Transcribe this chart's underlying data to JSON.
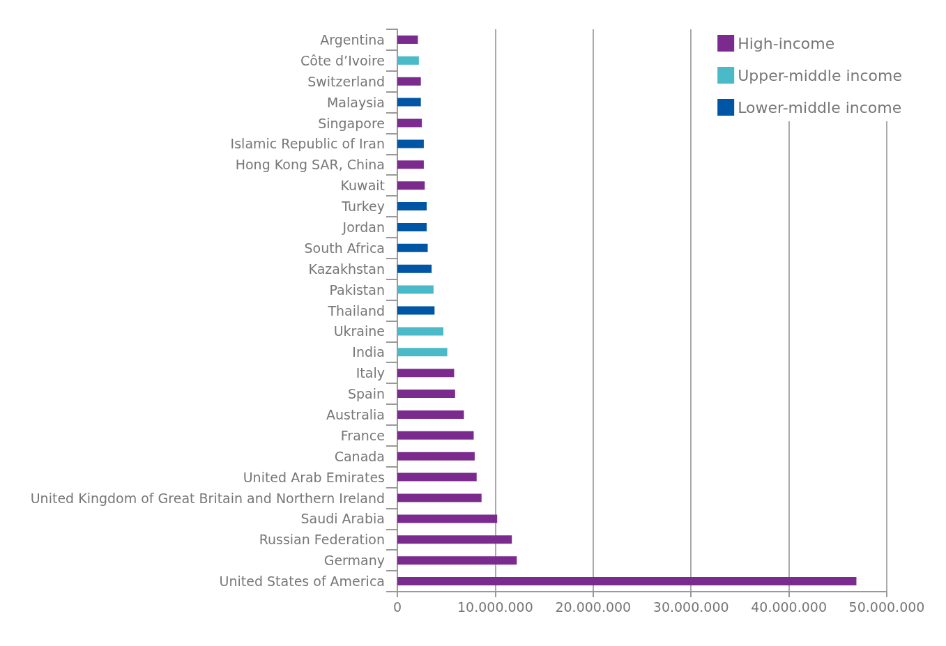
{
  "chart_data": {
    "type": "bar",
    "orientation": "horizontal",
    "categories": [
      "Argentina",
      "Côte d’Ivoire",
      "Switzerland",
      "Malaysia",
      "Singapore",
      "Islamic Republic of Iran",
      "Hong Kong SAR, China",
      "Kuwait",
      "Turkey",
      "Jordan",
      "South Africa",
      "Kazakhstan",
      "Pakistan",
      "Thailand",
      "Ukraine",
      "India",
      "Italy",
      "Spain",
      "Australia",
      "France",
      "Canada",
      "United Arab Emirates",
      "United Kingdom of Great Britain and Northern Ireland",
      "Saudi Arabia",
      "Russian Federation",
      "Germany",
      "United States of America"
    ],
    "series": [
      {
        "name": "High-income",
        "color": "#7b2a8e",
        "values": [
          2100000,
          null,
          2400000,
          null,
          2500000,
          null,
          2700000,
          2800000,
          null,
          null,
          null,
          null,
          null,
          null,
          null,
          null,
          5800000,
          5900000,
          6800000,
          7800000,
          7900000,
          8100000,
          8600000,
          10200000,
          11700000,
          12200000,
          46900000
        ]
      },
      {
        "name": "Upper-middle income",
        "color": "#4bbac8",
        "values": [
          null,
          2200000,
          null,
          null,
          null,
          null,
          null,
          null,
          null,
          null,
          null,
          null,
          3700000,
          null,
          4700000,
          5100000,
          null,
          null,
          null,
          null,
          null,
          null,
          null,
          null,
          null,
          null,
          null
        ]
      },
      {
        "name": "Lower-middle income",
        "color": "#0055a4",
        "values": [
          null,
          null,
          null,
          2400000,
          null,
          2700000,
          null,
          null,
          3000000,
          3000000,
          3100000,
          3500000,
          null,
          3800000,
          null,
          null,
          null,
          null,
          null,
          null,
          null,
          null,
          null,
          null,
          null,
          null,
          null
        ]
      }
    ],
    "xlim": [
      0,
      50000000
    ],
    "xticks": [
      0,
      {
        "value": 10000000,
        "label": "10.000.000"
      },
      {
        "value": 20000000,
        "label": "20.000.000"
      },
      {
        "value": 30000000,
        "label": "30.000.000"
      },
      {
        "value": 40000000,
        "label": "40.000.000"
      },
      {
        "value": 50000000,
        "label": "50.000.000"
      }
    ],
    "grid": "x",
    "legend": "top right"
  }
}
